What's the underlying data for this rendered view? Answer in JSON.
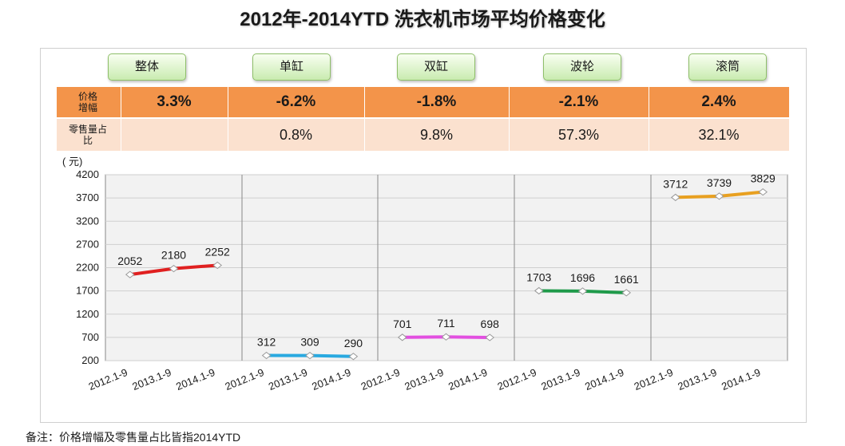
{
  "title": "2012年-2014YTD 洗衣机市场平均价格变化",
  "table": {
    "row1_label": "价格\n增幅",
    "row2_label": "零售量占\n比",
    "columns": [
      {
        "name": "整体",
        "growth": "3.3%",
        "share": ""
      },
      {
        "name": "单缸",
        "growth": "-6.2%",
        "share": "0.8%"
      },
      {
        "name": "双缸",
        "growth": "-1.8%",
        "share": "9.8%"
      },
      {
        "name": "波轮",
        "growth": "-2.1%",
        "share": "57.3%"
      },
      {
        "name": "滚筒",
        "growth": "2.4%",
        "share": "32.1%"
      }
    ]
  },
  "chart_data": {
    "type": "line",
    "ylabel": "( 元)",
    "ylim": [
      200,
      4200
    ],
    "yticks": [
      200,
      700,
      1200,
      1700,
      2200,
      2700,
      3200,
      3700,
      4200
    ],
    "categories": [
      "2012.1-9",
      "2013.1-9",
      "2014.1-9"
    ],
    "grid": true,
    "series": [
      {
        "name": "整体",
        "values": [
          2052,
          2180,
          2252
        ],
        "color": "#e02020"
      },
      {
        "name": "单缸",
        "values": [
          312,
          309,
          290
        ],
        "color": "#29a9e0"
      },
      {
        "name": "双缸",
        "values": [
          701,
          711,
          698
        ],
        "color": "#e24fe0"
      },
      {
        "name": "波轮",
        "values": [
          1703,
          1696,
          1661
        ],
        "color": "#1f9a4a"
      },
      {
        "name": "滚筒",
        "values": [
          3712,
          3739,
          3829
        ],
        "color": "#e8a020"
      }
    ]
  },
  "footnote": "备注：价格增幅及零售量占比皆指2014YTD"
}
